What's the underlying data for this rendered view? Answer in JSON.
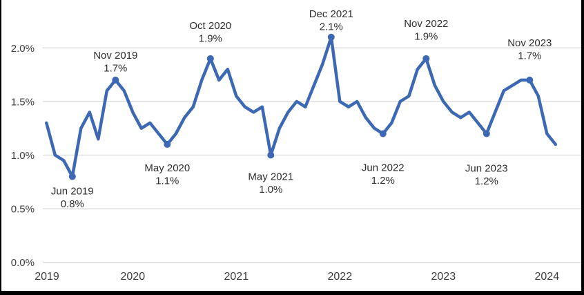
{
  "colors": {
    "line": "#3c68b4",
    "grid": "#d9d9d9",
    "tick_text": "#3d3d3d",
    "annotation_text": "#2e2e2e",
    "plot_background": "#ffffff",
    "frame_border": "#000000"
  },
  "chart_data": {
    "type": "line",
    "title": "",
    "xlabel": "",
    "ylabel": "",
    "unit": "%",
    "grid": true,
    "legend": "none",
    "ylim": [
      0.0,
      2.3
    ],
    "yticks": [
      0.0,
      0.5,
      1.0,
      1.5,
      2.0
    ],
    "ytick_labels": [
      "0.0%",
      "0.5%",
      "1.0%",
      "1.5%",
      "2.0%"
    ],
    "xtick_labels": [
      "2019",
      "2020",
      "2021",
      "2022",
      "2023",
      "2024"
    ],
    "x": [
      "Mar 2019",
      "Apr 2019",
      "May 2019",
      "Jun 2019",
      "Jul 2019",
      "Aug 2019",
      "Sep 2019",
      "Oct 2019",
      "Nov 2019",
      "Dec 2019",
      "Jan 2020",
      "Feb 2020",
      "Mar 2020",
      "Apr 2020",
      "May 2020",
      "Jun 2020",
      "Jul 2020",
      "Aug 2020",
      "Sep 2020",
      "Oct 2020",
      "Nov 2020",
      "Dec 2020",
      "Jan 2021",
      "Feb 2021",
      "Mar 2021",
      "Apr 2021",
      "May 2021",
      "Jun 2021",
      "Jul 2021",
      "Aug 2021",
      "Sep 2021",
      "Oct 2021",
      "Nov 2021",
      "Dec 2021",
      "Jan 2022",
      "Feb 2022",
      "Mar 2022",
      "Apr 2022",
      "May 2022",
      "Jun 2022",
      "Jul 2022",
      "Aug 2022",
      "Sep 2022",
      "Oct 2022",
      "Nov 2022",
      "Dec 2022",
      "Jan 2023",
      "Feb 2023",
      "Mar 2023",
      "Apr 2023",
      "May 2023",
      "Jun 2023",
      "Jul 2023",
      "Aug 2023",
      "Sep 2023",
      "Oct 2023",
      "Nov 2023",
      "Dec 2023",
      "Jan 2024",
      "Feb 2024"
    ],
    "values": [
      1.3,
      1.0,
      0.95,
      0.8,
      1.25,
      1.4,
      1.15,
      1.6,
      1.7,
      1.6,
      1.4,
      1.25,
      1.3,
      1.2,
      1.1,
      1.2,
      1.35,
      1.45,
      1.7,
      1.9,
      1.7,
      1.8,
      1.55,
      1.45,
      1.4,
      1.45,
      1.0,
      1.25,
      1.4,
      1.5,
      1.45,
      1.65,
      1.85,
      2.1,
      1.5,
      1.45,
      1.5,
      1.35,
      1.25,
      1.2,
      1.3,
      1.5,
      1.55,
      1.8,
      1.9,
      1.65,
      1.5,
      1.4,
      1.35,
      1.4,
      1.3,
      1.2,
      1.4,
      1.6,
      1.65,
      1.7,
      1.7,
      1.55,
      1.2,
      1.1
    ],
    "annotations": [
      {
        "month": "Jun 2019",
        "value": 0.8,
        "value_label": "0.8%",
        "placement": "below",
        "dy": 26
      },
      {
        "month": "Nov 2019",
        "value": 1.7,
        "value_label": "1.7%",
        "placement": "above",
        "dy": -31
      },
      {
        "month": "May 2020",
        "value": 1.1,
        "value_label": "1.1%",
        "placement": "below",
        "dy": 39
      },
      {
        "month": "Oct 2020",
        "value": 1.9,
        "value_label": "1.9%",
        "placement": "above",
        "dy": -43
      },
      {
        "month": "May 2021",
        "value": 1.0,
        "value_label": "1.0%",
        "placement": "below",
        "dy": 36
      },
      {
        "month": "Dec 2021",
        "value": 2.1,
        "value_label": "2.1%",
        "placement": "above",
        "dy": -29
      },
      {
        "month": "Jun 2022",
        "value": 1.2,
        "value_label": "1.2%",
        "placement": "below",
        "dy": 54
      },
      {
        "month": "Nov 2022",
        "value": 1.9,
        "value_label": "1.9%",
        "placement": "above",
        "dy": -46
      },
      {
        "month": "Jun 2023",
        "value": 1.2,
        "value_label": "1.2%",
        "placement": "below",
        "dy": 55
      },
      {
        "month": "Nov 2023",
        "value": 1.7,
        "value_label": "1.7%",
        "placement": "above",
        "dy": -49
      }
    ]
  }
}
